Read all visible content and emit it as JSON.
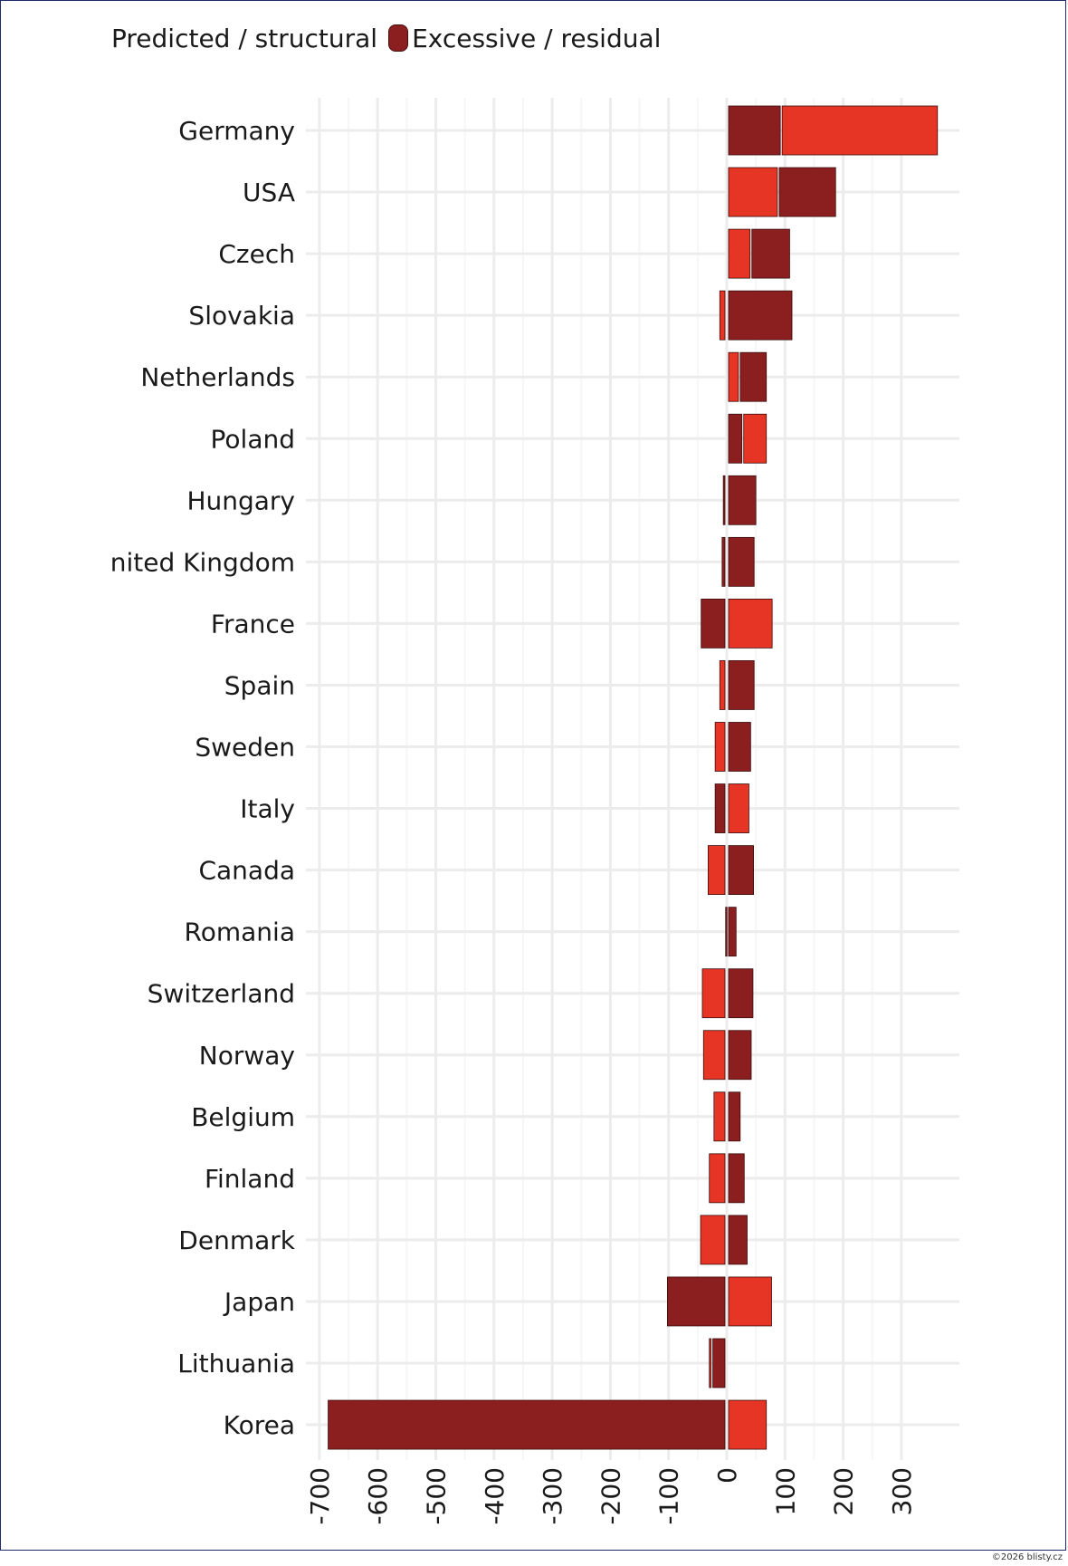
{
  "colors": {
    "predicted": "#8b1e1e",
    "excessive": "#e63525",
    "grid": "#ececec",
    "text": "#1a1a1a",
    "frame": "#1f2a6b"
  },
  "legend": {
    "items": [
      {
        "label": "Predicted / structural",
        "color": "#8b1e1e",
        "swatch": false
      },
      {
        "label": "Excessive / residual",
        "color": "#8b1e1e",
        "swatch": true
      }
    ]
  },
  "credit": "©2026 blisty.cz",
  "chart_data": {
    "type": "bar",
    "orientation": "horizontal",
    "stacked": "diverging",
    "xlim": [
      -720,
      400
    ],
    "xticks": [
      -700,
      -600,
      -500,
      -400,
      -300,
      -200,
      -100,
      0,
      100,
      200,
      300
    ],
    "xtick_labels": [
      "-700",
      "-600",
      "-500",
      "-400",
      "-300",
      "-200",
      "-100",
      "0",
      "100",
      "200",
      "300"
    ],
    "grid": true,
    "legend_position": "top-left",
    "categories": [
      "Germany",
      "USA",
      "Czech",
      "Slovakia",
      "Netherlands",
      "Poland",
      "Hungary",
      "nited Kingdom",
      "France",
      "Spain",
      "Sweden",
      "Italy",
      "Canada",
      "Romania",
      "Switzerland",
      "Norway",
      "Belgium",
      "Finland",
      "Denmark",
      "Japan",
      "Lithuania",
      "Korea"
    ],
    "segments": [
      [
        {
          "c": "predicted",
          "v": 92
        },
        {
          "c": "excessive",
          "v": 270
        }
      ],
      [
        {
          "c": "excessive",
          "v": 87
        },
        {
          "c": "predicted",
          "v": 100
        }
      ],
      [
        {
          "c": "excessive",
          "v": 40
        },
        {
          "c": "predicted",
          "v": 68
        }
      ],
      [
        {
          "c": "excessive",
          "v": -12
        },
        {
          "c": "predicted",
          "v": 112
        }
      ],
      [
        {
          "c": "excessive",
          "v": 20
        },
        {
          "c": "predicted",
          "v": 48
        }
      ],
      [
        {
          "c": "predicted",
          "v": 26
        },
        {
          "c": "excessive",
          "v": 42
        }
      ],
      [
        {
          "c": "predicted",
          "v": -6
        },
        {
          "c": "predicted",
          "v": 50
        }
      ],
      [
        {
          "c": "predicted",
          "v": -8
        },
        {
          "c": "predicted",
          "v": 47
        }
      ],
      [
        {
          "c": "predicted",
          "v": -44
        },
        {
          "c": "excessive",
          "v": 78
        }
      ],
      [
        {
          "c": "excessive",
          "v": -12
        },
        {
          "c": "predicted",
          "v": 47
        }
      ],
      [
        {
          "c": "excessive",
          "v": -20
        },
        {
          "c": "predicted",
          "v": 41
        }
      ],
      [
        {
          "c": "predicted",
          "v": -20
        },
        {
          "c": "excessive",
          "v": 38
        }
      ],
      [
        {
          "c": "excessive",
          "v": -32
        },
        {
          "c": "predicted",
          "v": 46
        }
      ],
      [
        {
          "c": "predicted",
          "v": -2
        },
        {
          "c": "predicted",
          "v": 16
        }
      ],
      [
        {
          "c": "excessive",
          "v": -42
        },
        {
          "c": "predicted",
          "v": 45
        }
      ],
      [
        {
          "c": "excessive",
          "v": -40
        },
        {
          "c": "predicted",
          "v": 42
        }
      ],
      [
        {
          "c": "excessive",
          "v": -22
        },
        {
          "c": "predicted",
          "v": 23
        }
      ],
      [
        {
          "c": "excessive",
          "v": -30
        },
        {
          "c": "predicted",
          "v": 30
        }
      ],
      [
        {
          "c": "excessive",
          "v": -45
        },
        {
          "c": "predicted",
          "v": 35
        }
      ],
      [
        {
          "c": "predicted",
          "v": -102
        },
        {
          "c": "excessive",
          "v": 77
        }
      ],
      [
        {
          "c": "predicted",
          "v": -24
        },
        {
          "c": "excessive",
          "v": -6
        }
      ],
      [
        {
          "c": "predicted",
          "v": -685
        },
        {
          "c": "excessive",
          "v": 68
        }
      ]
    ]
  }
}
